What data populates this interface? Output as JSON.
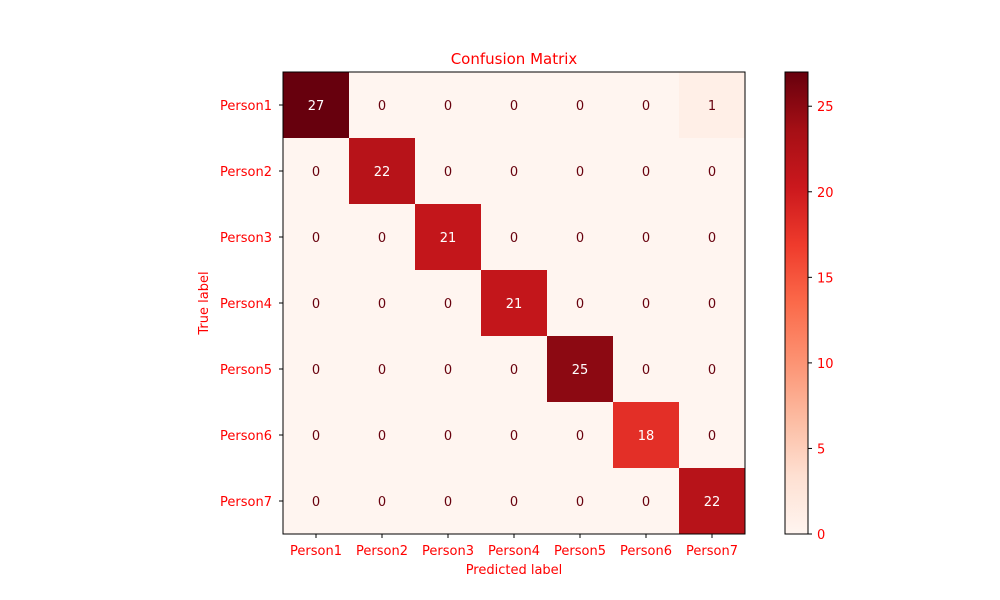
{
  "chart_data": {
    "type": "heatmap",
    "title": "Confusion Matrix",
    "xlabel": "Predicted label",
    "ylabel": "True label",
    "x_categories": [
      "Person1",
      "Person2",
      "Person3",
      "Person4",
      "Person5",
      "Person6",
      "Person7"
    ],
    "y_categories": [
      "Person1",
      "Person2",
      "Person3",
      "Person4",
      "Person5",
      "Person6",
      "Person7"
    ],
    "values": [
      [
        27,
        0,
        0,
        0,
        0,
        0,
        1
      ],
      [
        0,
        22,
        0,
        0,
        0,
        0,
        0
      ],
      [
        0,
        0,
        21,
        0,
        0,
        0,
        0
      ],
      [
        0,
        0,
        0,
        21,
        0,
        0,
        0
      ],
      [
        0,
        0,
        0,
        0,
        25,
        0,
        0
      ],
      [
        0,
        0,
        0,
        0,
        0,
        18,
        0
      ],
      [
        0,
        0,
        0,
        0,
        0,
        0,
        22
      ]
    ],
    "colormap": "Reds",
    "vmin": 0,
    "vmax": 27,
    "colorbar_ticks": [
      0,
      5,
      10,
      15,
      20,
      25
    ],
    "label_color": "#ff0000"
  }
}
